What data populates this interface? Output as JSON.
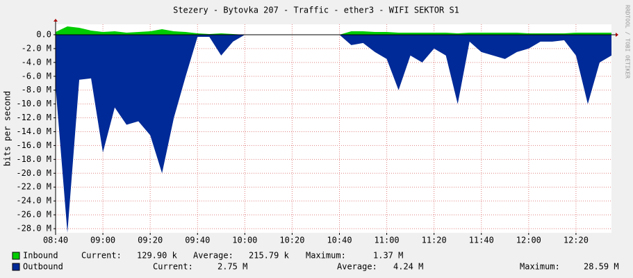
{
  "chart_data": {
    "type": "area",
    "title": "Stezery - Bytovka 207 - Traffic - ether3 - WIFI SEKTOR S1",
    "y_label": "bits per second",
    "side_note": "RRDTOOL / TOBI OETIKER",
    "x": [
      520,
      525,
      530,
      535,
      540,
      545,
      550,
      555,
      560,
      565,
      570,
      575,
      580,
      585,
      590,
      595,
      600,
      605,
      610,
      615,
      620,
      625,
      630,
      635,
      640,
      645,
      650,
      655,
      660,
      665,
      670,
      675,
      680,
      685,
      690,
      695,
      700,
      705,
      710,
      715,
      720,
      725,
      730,
      735,
      740,
      745,
      750,
      755
    ],
    "xlim": [
      520,
      755
    ],
    "xticks": [
      {
        "value": 520,
        "label": "08:40"
      },
      {
        "value": 540,
        "label": "09:00"
      },
      {
        "value": 560,
        "label": "09:20"
      },
      {
        "value": 580,
        "label": "09:40"
      },
      {
        "value": 600,
        "label": "10:00"
      },
      {
        "value": 620,
        "label": "10:20"
      },
      {
        "value": 640,
        "label": "10:40"
      },
      {
        "value": 660,
        "label": "11:00"
      },
      {
        "value": 680,
        "label": "11:20"
      },
      {
        "value": 700,
        "label": "11:40"
      },
      {
        "value": 720,
        "label": "12:00"
      },
      {
        "value": 740,
        "label": "12:20"
      }
    ],
    "ylim": [
      -28.6,
      1.5
    ],
    "yticks": [
      {
        "value": 0,
        "label": "0.0"
      },
      {
        "value": -2,
        "label": "-2.0 M"
      },
      {
        "value": -4,
        "label": "-4.0 M"
      },
      {
        "value": -6,
        "label": "-6.0 M"
      },
      {
        "value": -8,
        "label": "-8.0 M"
      },
      {
        "value": -10,
        "label": "-10.0 M"
      },
      {
        "value": -12,
        "label": "-12.0 M"
      },
      {
        "value": -14,
        "label": "-14.0 M"
      },
      {
        "value": -16,
        "label": "-16.0 M"
      },
      {
        "value": -18,
        "label": "-18.0 M"
      },
      {
        "value": -20,
        "label": "-20.0 M"
      },
      {
        "value": -22,
        "label": "-22.0 M"
      },
      {
        "value": -24,
        "label": "-24.0 M"
      },
      {
        "value": -26,
        "label": "-26.0 M"
      },
      {
        "value": -28,
        "label": "-28.0 M"
      }
    ],
    "grid": true,
    "series": [
      {
        "name": "Inbound",
        "color": "#00cc00",
        "values": [
          0.4,
          1.2,
          1.0,
          0.6,
          0.4,
          0.5,
          0.3,
          0.4,
          0.5,
          0.8,
          0.5,
          0.4,
          0.2,
          0.1,
          0.2,
          0.1,
          0,
          0,
          0,
          0,
          0,
          0,
          0,
          0,
          0,
          0.5,
          0.5,
          0.4,
          0.4,
          0.3,
          0.3,
          0.3,
          0.3,
          0.3,
          0.2,
          0.3,
          0.3,
          0.3,
          0.3,
          0.3,
          0.2,
          0.2,
          0.2,
          0.2,
          0.3,
          0.3,
          0.3,
          0.3
        ],
        "stats": [
          "Current:",
          "129.90 k",
          "Average:",
          "215.79 k",
          "Maximum:",
          "1.37 M"
        ]
      },
      {
        "name": "Outbound",
        "color": "#002a97",
        "values": [
          -7.5,
          -28.59,
          -6.5,
          -6.3,
          -17,
          -10.5,
          -13,
          -12.5,
          -14.5,
          -20,
          -12,
          -6,
          -0.3,
          -0.3,
          -3,
          -1,
          0,
          0,
          0,
          0,
          0,
          0,
          0,
          0,
          0,
          -1.5,
          -1.2,
          -2.5,
          -3.5,
          -8,
          -3,
          -4,
          -2,
          -3,
          -10,
          -1,
          -2.5,
          -3,
          -3.5,
          -2.5,
          -2,
          -1,
          -1,
          -0.8,
          -3,
          -10,
          -4,
          -3
        ],
        "stats": [
          "Current:",
          "2.75 M",
          "Average:",
          "4.24 M",
          "Maximum:",
          "28.59 M"
        ]
      }
    ]
  }
}
